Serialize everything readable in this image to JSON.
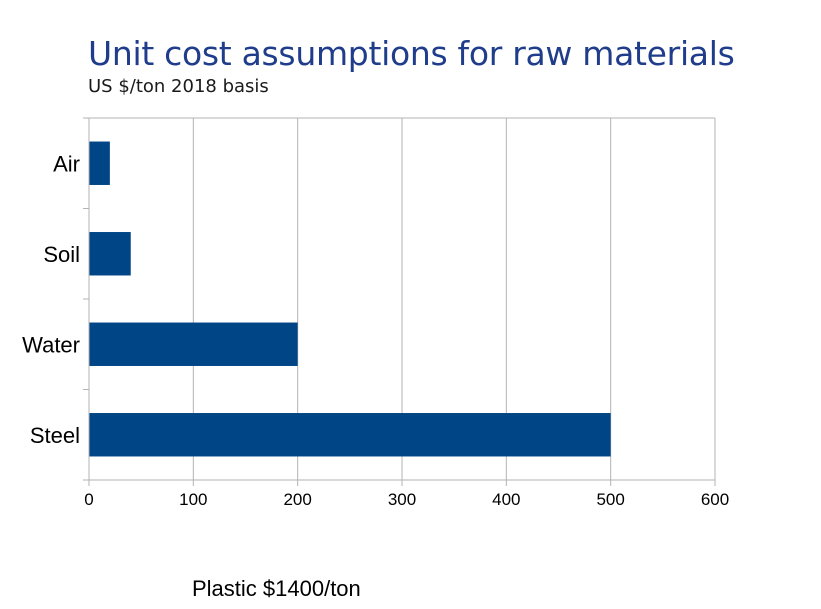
{
  "chart_data": {
    "type": "bar",
    "orientation": "horizontal",
    "title": "Unit cost assumptions for raw materials",
    "subtitle": "US $/ton 2018 basis",
    "categories": [
      "Air",
      "Soil",
      "Water",
      "Steel"
    ],
    "values": [
      20,
      40,
      200,
      500
    ],
    "xlim": [
      0,
      600
    ],
    "xticks": [
      "0",
      "100",
      "200",
      "300",
      "400",
      "500",
      "600"
    ],
    "grid": true,
    "legend": "none",
    "bar_color": "#004586",
    "grid_color": "#b3b3b3",
    "title_color": "#1f3d8a"
  },
  "note": "Plastic $1400/ton"
}
